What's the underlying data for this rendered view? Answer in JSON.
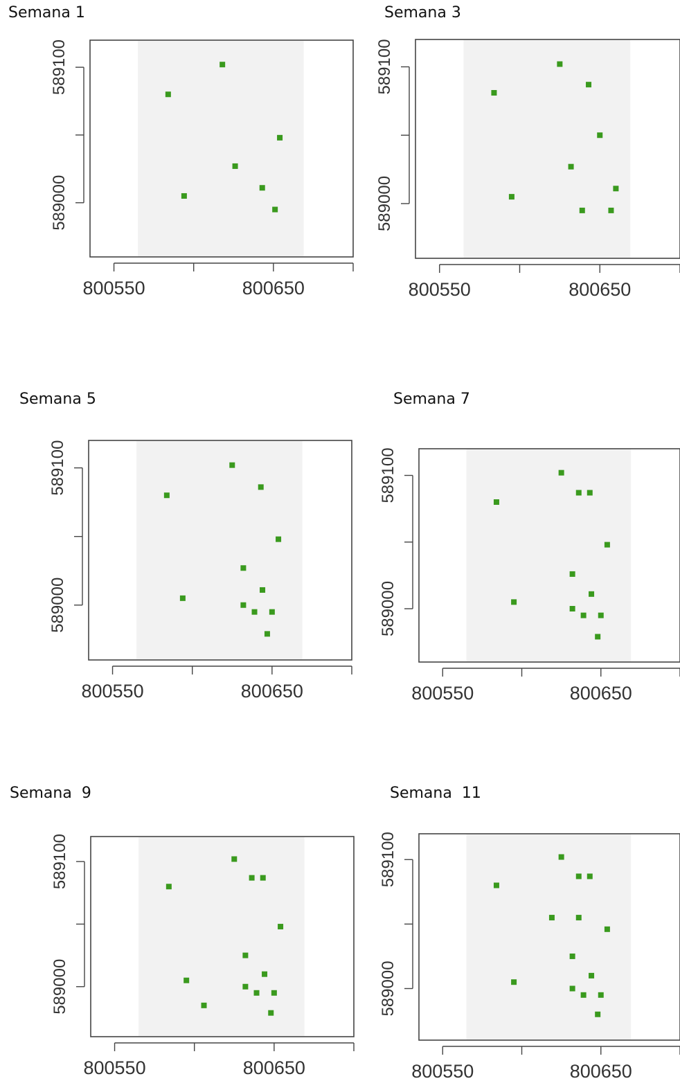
{
  "chart_data": [
    {
      "type": "scatter",
      "title": "Semana 1",
      "xlim": [
        800535,
        800700
      ],
      "ylim": [
        588960,
        589120
      ],
      "x_ticks": [
        800550,
        800600,
        800650,
        800700
      ],
      "x_tick_labels": [
        "800550",
        "",
        "800650",
        ""
      ],
      "y_ticks": [
        589000,
        589050,
        589100
      ],
      "y_tick_labels": [
        "589000",
        "",
        "589100"
      ],
      "shaded_x_range": [
        800565,
        800669
      ],
      "marker_color": "#3a9a1e",
      "series": [
        {
          "x": [
            800584,
            800618,
            800594,
            800626,
            800654,
            800643,
            800651
          ],
          "y": [
            589080,
            589102,
            589005,
            589027,
            589048,
            589011,
            588995
          ]
        }
      ]
    },
    {
      "type": "scatter",
      "title": "Semana 3",
      "xlim": [
        800535,
        800700
      ],
      "ylim": [
        588960,
        589120
      ],
      "x_ticks": [
        800550,
        800600,
        800650,
        800700
      ],
      "x_tick_labels": [
        "800550",
        "",
        "800650",
        ""
      ],
      "y_ticks": [
        589000,
        589050,
        589100
      ],
      "y_tick_labels": [
        "589000",
        "",
        "589100"
      ],
      "shaded_x_range": [
        800565,
        800669
      ],
      "marker_color": "#3a9a1e",
      "series": [
        {
          "x": [
            800584,
            800625,
            800643,
            800595,
            800632,
            800650,
            800660,
            800639,
            800657
          ],
          "y": [
            589081,
            589102,
            589087,
            589005,
            589027,
            589050,
            589011,
            588995,
            588995
          ]
        }
      ]
    },
    {
      "type": "scatter",
      "title": "Semana 5",
      "xlim": [
        800535,
        800700
      ],
      "ylim": [
        588960,
        589120
      ],
      "x_ticks": [
        800550,
        800600,
        800650,
        800700
      ],
      "x_tick_labels": [
        "800550",
        "",
        "800650",
        ""
      ],
      "y_ticks": [
        589000,
        589050,
        589100
      ],
      "y_tick_labels": [
        "589000",
        "",
        "589100"
      ],
      "shaded_x_range": [
        800565,
        800669
      ],
      "marker_color": "#3a9a1e",
      "series": [
        {
          "x": [
            800584,
            800625,
            800643,
            800654,
            800594,
            800632,
            800632,
            800639,
            800650,
            800644,
            800647
          ],
          "y": [
            589080,
            589102,
            589086,
            589048,
            589005,
            589027,
            589000,
            588995,
            588995,
            589011,
            588979
          ]
        }
      ]
    },
    {
      "type": "scatter",
      "title": "Semana 7",
      "xlim": [
        800535,
        800700
      ],
      "ylim": [
        588960,
        589120
      ],
      "x_ticks": [
        800550,
        800600,
        800650,
        800700
      ],
      "x_tick_labels": [
        "800550",
        "",
        "800650",
        ""
      ],
      "y_ticks": [
        589000,
        589050,
        589100
      ],
      "y_tick_labels": [
        "589000",
        "",
        "589100"
      ],
      "shaded_x_range": [
        800565,
        800669
      ],
      "marker_color": "#3a9a1e",
      "series": [
        {
          "x": [
            800584,
            800625,
            800636,
            800643,
            800654,
            800595,
            800632,
            800632,
            800639,
            800650,
            800644,
            800648
          ],
          "y": [
            589080,
            589102,
            589087,
            589087,
            589048,
            589005,
            589026,
            589000,
            588995,
            588995,
            589011,
            588979
          ]
        }
      ]
    },
    {
      "type": "scatter",
      "title": "Semana  9",
      "xlim": [
        800535,
        800700
      ],
      "ylim": [
        588960,
        589120
      ],
      "x_ticks": [
        800550,
        800600,
        800650,
        800700
      ],
      "x_tick_labels": [
        "800550",
        "",
        "800650",
        ""
      ],
      "y_ticks": [
        589000,
        589050,
        589100
      ],
      "y_tick_labels": [
        "589000",
        "",
        "589100"
      ],
      "shaded_x_range": [
        800565,
        800669
      ],
      "marker_color": "#3a9a1e",
      "series": [
        {
          "x": [
            800584,
            800625,
            800636,
            800643,
            800654,
            800595,
            800606,
            800632,
            800632,
            800639,
            800650,
            800644,
            800648
          ],
          "y": [
            589080,
            589102,
            589087,
            589087,
            589048,
            589005,
            588985,
            589025,
            589000,
            588995,
            588995,
            589010,
            588979
          ]
        }
      ]
    },
    {
      "type": "scatter",
      "title": "Semana  11",
      "xlim": [
        800535,
        800700
      ],
      "ylim": [
        588960,
        589120
      ],
      "x_ticks": [
        800550,
        800600,
        800650,
        800700
      ],
      "x_tick_labels": [
        "800550",
        "",
        "800650",
        ""
      ],
      "y_ticks": [
        589000,
        589050,
        589100
      ],
      "y_tick_labels": [
        "589000",
        "",
        "589100"
      ],
      "shaded_x_range": [
        800565,
        800669
      ],
      "marker_color": "#3a9a1e",
      "series": [
        {
          "x": [
            800584,
            800625,
            800636,
            800643,
            800654,
            800595,
            800619,
            800636,
            800632,
            800632,
            800639,
            800650,
            800644,
            800648
          ],
          "y": [
            589080,
            589102,
            589087,
            589087,
            589046,
            589005,
            589055,
            589055,
            589025,
            589000,
            588995,
            588995,
            589010,
            588980
          ]
        }
      ]
    }
  ]
}
